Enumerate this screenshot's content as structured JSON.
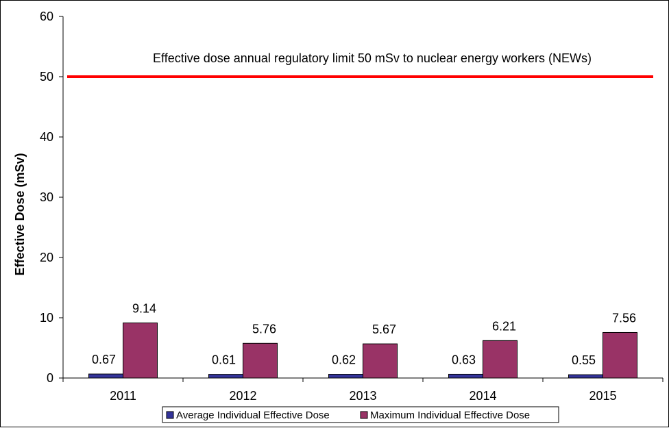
{
  "chart_data": {
    "type": "bar",
    "categories": [
      "2011",
      "2012",
      "2013",
      "2014",
      "2015"
    ],
    "series": [
      {
        "name": "Average Individual Effective Dose",
        "values": [
          0.67,
          0.61,
          0.62,
          0.63,
          0.55
        ],
        "color": "#333399"
      },
      {
        "name": "Maximum Individual Effective Dose",
        "values": [
          9.14,
          5.76,
          5.67,
          6.21,
          7.56
        ],
        "color": "#993366"
      }
    ],
    "ylabel": "Effective Dose (mSv)",
    "xlabel": "",
    "ylim": [
      0,
      60
    ],
    "yticks": [
      0,
      10,
      20,
      30,
      40,
      50,
      60
    ],
    "reference_line": {
      "value": 50,
      "color": "#ff0000",
      "label": "Effective dose annual regulatory limit 50 mSv to nuclear energy workers (NEWs)"
    },
    "grid": false,
    "legend_position": "bottom"
  }
}
